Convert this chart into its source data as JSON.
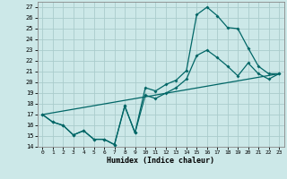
{
  "xlabel": "Humidex (Indice chaleur)",
  "bg_color": "#cce8e8",
  "grid_color": "#aacccc",
  "line_color": "#006666",
  "xlim": [
    -0.5,
    23.5
  ],
  "ylim": [
    14,
    27.5
  ],
  "yticks": [
    14,
    15,
    16,
    17,
    18,
    19,
    20,
    21,
    22,
    23,
    24,
    25,
    26,
    27
  ],
  "xticks": [
    0,
    1,
    2,
    3,
    4,
    5,
    6,
    7,
    8,
    9,
    10,
    11,
    12,
    13,
    14,
    15,
    16,
    17,
    18,
    19,
    20,
    21,
    22,
    23
  ],
  "line1_x": [
    0,
    1,
    2,
    3,
    4,
    5,
    6,
    7,
    8,
    9,
    10,
    11,
    12,
    13,
    14,
    15,
    16,
    17,
    18,
    19,
    20,
    21,
    22,
    23
  ],
  "line1_y": [
    17.0,
    16.3,
    16.0,
    15.1,
    15.5,
    14.7,
    14.7,
    14.2,
    17.8,
    15.3,
    19.5,
    19.2,
    19.8,
    20.2,
    21.1,
    26.3,
    27.0,
    26.2,
    25.1,
    25.0,
    23.2,
    21.5,
    20.8,
    20.8
  ],
  "line2_x": [
    0,
    1,
    2,
    3,
    4,
    5,
    6,
    7,
    8,
    9,
    10,
    11,
    12,
    13,
    14,
    15,
    16,
    17,
    18,
    19,
    20,
    21,
    22,
    23
  ],
  "line2_y": [
    17.0,
    16.3,
    16.0,
    15.1,
    15.5,
    14.7,
    14.7,
    14.2,
    17.8,
    15.3,
    18.8,
    18.5,
    19.0,
    19.5,
    20.3,
    22.5,
    23.0,
    22.3,
    21.5,
    20.6,
    21.8,
    20.8,
    20.3,
    20.8
  ],
  "line3_x": [
    0,
    23
  ],
  "line3_y": [
    17.0,
    20.8
  ]
}
